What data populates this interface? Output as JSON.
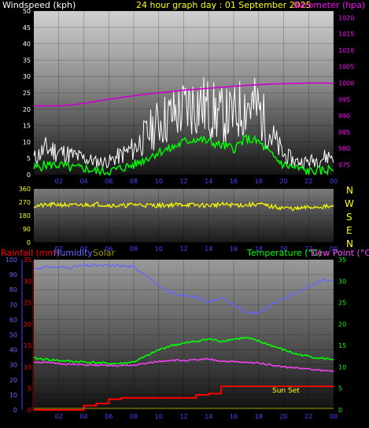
{
  "top": {
    "left_label": "Windspeed (kph)",
    "center_label": "24 hour graph day : 01 September 2025",
    "right_label": "Barometer (hpa)",
    "colors": {
      "left": "#ffffff",
      "center": "#ffff00",
      "right": "#ff00ff"
    }
  },
  "direction_letters": [
    "N",
    "W",
    "S",
    "E",
    "N"
  ],
  "bottom": {
    "rainfall_label": "Rainfall (mm)",
    "humidity_label": "Humidity",
    "solar_label": "Solar",
    "temperature_label": "Temperature (°C)",
    "dewpoint_label": "Dew Point (°C)",
    "sunset_label": "Sun Set",
    "colors": {
      "rainfall": "#ff0000",
      "humidity": "#6666ff",
      "solar": "#999900",
      "temperature": "#00ff00",
      "dewpoint": "#ff44ff"
    }
  },
  "chart_data": [
    {
      "type": "line",
      "x_ticks": [
        "02",
        "04",
        "06",
        "08",
        "10",
        "12",
        "14",
        "16",
        "18",
        "20",
        "22",
        "00"
      ],
      "left_axis": {
        "label": "Windspeed (kph)",
        "ylim": [
          0,
          50
        ],
        "ticks": [
          0,
          5,
          10,
          15,
          20,
          25,
          30,
          35,
          40,
          45,
          50
        ]
      },
      "right_axis": {
        "label": "Barometer (hpa)",
        "ylim": [
          972,
          1022
        ],
        "ticks": [
          975,
          980,
          985,
          990,
          995,
          1000,
          1005,
          1010,
          1015,
          1020
        ]
      },
      "series": [
        {
          "name": "Barometer",
          "axis": "right",
          "color": "#cc00cc",
          "x": [
            0,
            1,
            2,
            3,
            4,
            5,
            6,
            7,
            8,
            9,
            10,
            11,
            12,
            13,
            14,
            15,
            16,
            17,
            18,
            19,
            20,
            21,
            22,
            23,
            24
          ],
          "values": [
            993,
            993,
            993,
            993.3,
            993.8,
            994.4,
            995,
            995.6,
            996.1,
            996.6,
            997,
            997.4,
            997.8,
            998.1,
            998.4,
            998.7,
            999,
            999.3,
            999.5,
            999.7,
            999.8,
            999.9,
            1000,
            1000,
            999.9
          ]
        },
        {
          "name": "Wind gust",
          "axis": "left",
          "color": "#ffffff",
          "x": [
            0,
            1,
            2,
            3,
            4,
            5,
            6,
            7,
            8,
            9,
            10,
            11,
            12,
            13,
            14,
            15,
            16,
            17,
            18,
            19,
            20,
            21,
            22,
            23,
            24
          ],
          "values": [
            5,
            8,
            7,
            6,
            5,
            4,
            4,
            6,
            8,
            12,
            16,
            18,
            20,
            22,
            20,
            18,
            18,
            22,
            20,
            12,
            6,
            4,
            4,
            5,
            6
          ]
        },
        {
          "name": "Wind average",
          "axis": "left",
          "color": "#00ff00",
          "x": [
            0,
            1,
            2,
            3,
            4,
            5,
            6,
            7,
            8,
            9,
            10,
            11,
            12,
            13,
            14,
            15,
            16,
            17,
            18,
            19,
            20,
            21,
            22,
            23,
            24
          ],
          "values": [
            2,
            3,
            3,
            2,
            2,
            1,
            1,
            2,
            3,
            5,
            7,
            8,
            10,
            11,
            10,
            9,
            8,
            11,
            10,
            6,
            3,
            2,
            1,
            1,
            2
          ]
        }
      ]
    },
    {
      "type": "line",
      "x_ticks": [
        "02",
        "04",
        "06",
        "08",
        "10",
        "12",
        "14",
        "16",
        "18",
        "20",
        "22",
        "00"
      ],
      "left_axis": {
        "ylim": [
          0,
          360
        ],
        "ticks": [
          0,
          90,
          180,
          270,
          360
        ]
      },
      "series": [
        {
          "name": "Wind direction",
          "color": "#ffff00",
          "x": [
            0,
            1,
            2,
            3,
            4,
            5,
            6,
            7,
            8,
            9,
            10,
            11,
            12,
            13,
            14,
            15,
            16,
            17,
            18,
            19,
            20,
            21,
            22,
            23,
            24
          ],
          "values": [
            245,
            250,
            255,
            248,
            252,
            258,
            250,
            245,
            255,
            250,
            248,
            252,
            255,
            250,
            248,
            255,
            252,
            250,
            258,
            240,
            232,
            225,
            235,
            240,
            238
          ]
        }
      ]
    },
    {
      "type": "line",
      "x_ticks": [
        "02",
        "04",
        "06",
        "08",
        "10",
        "12",
        "14",
        "16",
        "18",
        "20",
        "22",
        "00"
      ],
      "left_axis_rain": {
        "label": "Rainfall (mm)",
        "ylim": [
          0,
          35
        ],
        "ticks": [
          0,
          5,
          10,
          15,
          20,
          25,
          30,
          35
        ]
      },
      "left_axis_humidity": {
        "label": "Humidity",
        "ylim": [
          0,
          100
        ],
        "ticks": [
          0,
          10,
          20,
          30,
          40,
          50,
          60,
          70,
          80,
          90,
          100
        ]
      },
      "right_axis": {
        "label": "Temperature (°C)",
        "ylim": [
          0,
          35
        ],
        "ticks": [
          0,
          5,
          10,
          15,
          20,
          25,
          30,
          35
        ]
      },
      "series": [
        {
          "name": "Humidity",
          "axis": "humidity",
          "color": "#6666ff",
          "x": [
            0,
            1,
            2,
            3,
            4,
            5,
            6,
            7,
            8,
            9,
            10,
            11,
            12,
            13,
            14,
            15,
            16,
            17,
            18,
            19,
            20,
            21,
            22,
            23,
            24
          ],
          "values": [
            94,
            95,
            95,
            95,
            96,
            96,
            96,
            96,
            95,
            90,
            82,
            78,
            76,
            75,
            72,
            75,
            70,
            65,
            64,
            70,
            74,
            78,
            82,
            86,
            87
          ]
        },
        {
          "name": "Temperature",
          "axis": "right",
          "color": "#00ff00",
          "x": [
            0,
            1,
            2,
            3,
            4,
            5,
            6,
            7,
            8,
            9,
            10,
            11,
            12,
            13,
            14,
            15,
            16,
            17,
            18,
            19,
            20,
            21,
            22,
            23,
            24
          ],
          "values": [
            12,
            11.8,
            11.5,
            11.3,
            11.2,
            11,
            10.8,
            10.8,
            11.2,
            12.5,
            14,
            15,
            15.5,
            16,
            16.5,
            16,
            16.5,
            16.8,
            16,
            15,
            14,
            13,
            12.5,
            12,
            11.8
          ]
        },
        {
          "name": "Dew Point",
          "axis": "right",
          "color": "#ff44ff",
          "x": [
            0,
            1,
            2,
            3,
            4,
            5,
            6,
            7,
            8,
            9,
            10,
            11,
            12,
            13,
            14,
            15,
            16,
            17,
            18,
            19,
            20,
            21,
            22,
            23,
            24
          ],
          "values": [
            11.2,
            11,
            10.8,
            10.6,
            10.5,
            10.4,
            10.3,
            10.3,
            10.4,
            10.8,
            11.3,
            11.6,
            11.5,
            11.6,
            11.8,
            11.4,
            11.2,
            11,
            11,
            10.5,
            10,
            9.8,
            9.5,
            9.2,
            9
          ]
        },
        {
          "name": "Rainfall",
          "axis": "rain",
          "color": "#ff0000",
          "x": [
            0,
            1,
            2,
            3,
            4,
            5,
            6,
            7,
            8,
            9,
            10,
            11,
            12,
            13,
            14,
            15,
            16,
            17,
            18,
            19,
            20,
            21,
            22,
            23,
            24
          ],
          "values": [
            0,
            0,
            0,
            0,
            1,
            1.5,
            2.5,
            2.8,
            2.8,
            2.8,
            2.8,
            2.8,
            2.8,
            3.5,
            3.8,
            5.5,
            5.5,
            5.5,
            5.5,
            5.5,
            5.5,
            5.5,
            5.5,
            5.5,
            5.5
          ]
        }
      ]
    }
  ]
}
